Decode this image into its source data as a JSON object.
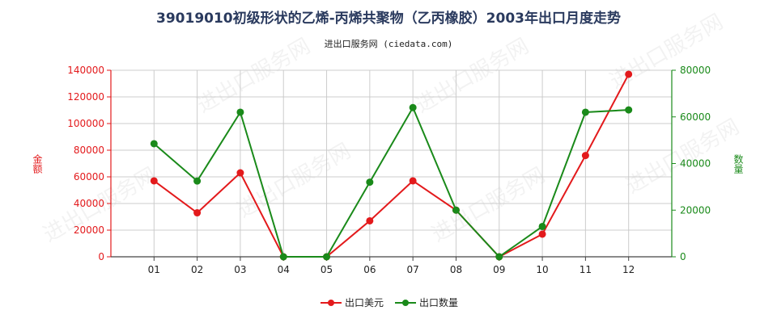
{
  "title": "39019010初级形状的乙烯-丙烯共聚物（乙丙橡胶）2003年出口月度走势",
  "subtitle": "进出口服务网 (ciedata.com)",
  "watermark": "进出口服务网",
  "colors": {
    "value": "#e31a1c",
    "quantity": "#1a8a1a",
    "grid": "#cccccc",
    "axis_left": "#e31a1c",
    "axis_right": "#1a8a1a"
  },
  "chart_data": {
    "type": "line",
    "categories": [
      "01",
      "02",
      "03",
      "04",
      "05",
      "06",
      "07",
      "08",
      "09",
      "10",
      "11",
      "12"
    ],
    "ylabel_left": "金额",
    "ylabel_right": "数量",
    "ylim_left": [
      0,
      140000
    ],
    "ylim_right": [
      0,
      80000
    ],
    "yticks_left": [
      "0",
      "20000",
      "40000",
      "60000",
      "80000",
      "100000",
      "120000",
      "140000"
    ],
    "yticks_right": [
      "0",
      "20000",
      "40000",
      "60000",
      "80000"
    ],
    "series": [
      {
        "name": "出口美元",
        "axis": "left",
        "values": [
          57000,
          33000,
          63000,
          0,
          0,
          27000,
          57000,
          35000,
          0,
          17000,
          76000,
          137000
        ]
      },
      {
        "name": "出口数量",
        "axis": "right",
        "values": [
          48500,
          32500,
          62000,
          0,
          0,
          32000,
          64000,
          20000,
          0,
          13000,
          62000,
          63000
        ]
      }
    ],
    "grid": true,
    "legend": "bottom-center"
  }
}
